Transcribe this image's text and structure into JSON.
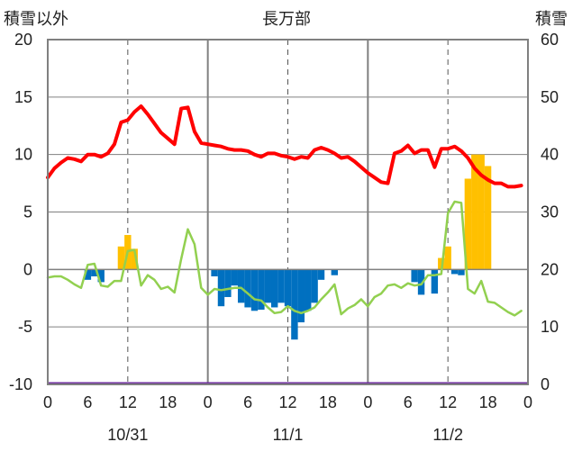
{
  "chart_data": {
    "type": "bar+line",
    "title": "長万部",
    "left_axis_title": "積雪以外",
    "right_axis_title": "積雪",
    "left_ylim": [
      -10,
      20
    ],
    "left_ticks": [
      "20",
      "15",
      "10",
      "5",
      "0",
      "-5",
      "-10"
    ],
    "right_ylim": [
      0,
      60
    ],
    "right_ticks": [
      "60",
      "50",
      "40",
      "30",
      "20",
      "10",
      "0"
    ],
    "x_hours_range": [
      0,
      72
    ],
    "x_tick_labels": [
      "0",
      "6",
      "12",
      "18",
      "0",
      "6",
      "12",
      "18",
      "0",
      "6",
      "12",
      "18",
      "0"
    ],
    "day_labels": [
      "10/31",
      "11/1",
      "11/2"
    ],
    "grid": "dashed vertical at hour 12 of each day; solid at day boundaries",
    "colors": {
      "temperature": "#ff0000",
      "dewpoint_or_wind": "#92d050",
      "precip_positive": "#ffc000",
      "precip_negative": "#0070c0",
      "snow_depth": "#7030a0",
      "frame": "#808080"
    },
    "series": [
      {
        "key": "red_line",
        "axis": "left",
        "values": [
          8.0,
          8.8,
          9.3,
          9.7,
          9.6,
          9.4,
          10.0,
          10.0,
          9.8,
          10.1,
          10.9,
          12.8,
          13.0,
          13.7,
          14.2,
          13.5,
          12.7,
          11.9,
          11.4,
          10.9,
          14.0,
          14.1,
          12.0,
          11.0,
          10.9,
          10.8,
          10.7,
          10.5,
          10.4,
          10.4,
          10.3,
          10.0,
          9.8,
          10.1,
          10.1,
          9.9,
          9.8,
          9.6,
          9.8,
          9.7,
          10.4,
          10.6,
          10.4,
          10.1,
          9.7,
          9.8,
          9.4,
          8.9,
          8.4,
          8.0,
          7.6,
          7.5,
          10.1,
          10.3,
          10.8,
          10.1,
          10.4,
          10.4,
          8.9,
          10.5,
          10.5,
          10.7,
          10.3,
          9.7,
          8.8,
          8.2,
          7.8,
          7.5,
          7.5,
          7.2,
          7.2,
          7.3
        ]
      },
      {
        "key": "green_line",
        "axis": "left",
        "values": [
          -0.7,
          -0.6,
          -0.6,
          -0.9,
          -1.3,
          -1.6,
          0.4,
          0.5,
          -1.4,
          -1.5,
          -1.0,
          -1.0,
          1.6,
          1.7,
          -1.4,
          -0.5,
          -0.9,
          -1.7,
          -1.5,
          -2.0,
          0.9,
          3.5,
          2.2,
          -1.6,
          -2.2,
          -1.7,
          -1.8,
          -1.7,
          -1.6,
          -1.6,
          -2.1,
          -2.6,
          -2.7,
          -3.3,
          -3.8,
          -3.7,
          -3.2,
          -3.6,
          -3.8,
          -3.6,
          -3.3,
          -2.6,
          -2.0,
          -1.3,
          -3.9,
          -3.4,
          -3.1,
          -2.6,
          -3.2,
          -2.4,
          -2.1,
          -1.4,
          -1.3,
          -1.6,
          -1.2,
          -1.4,
          -1.3,
          -0.5,
          -0.5,
          -0.4,
          4.9,
          5.9,
          5.8,
          -1.7,
          -2.1,
          -1.0,
          -2.8,
          -2.9,
          -3.3,
          -3.7,
          -4.0,
          -3.6
        ]
      },
      {
        "key": "snow_depth",
        "axis": "right",
        "values_constant": 0
      },
      {
        "key": "bars",
        "axis": "left",
        "bars": [
          {
            "hour": 6,
            "value": -0.9
          },
          {
            "hour": 7,
            "value": -0.6
          },
          {
            "hour": 8,
            "value": -1.1
          },
          {
            "hour": 11,
            "value": 2.0
          },
          {
            "hour": 12,
            "value": 3.0
          },
          {
            "hour": 13,
            "value": 1.8
          },
          {
            "hour": 25,
            "value": -0.6
          },
          {
            "hour": 26,
            "value": -3.2
          },
          {
            "hour": 27,
            "value": -2.4
          },
          {
            "hour": 28,
            "value": -1.4
          },
          {
            "hour": 29,
            "value": -2.9
          },
          {
            "hour": 30,
            "value": -3.3
          },
          {
            "hour": 31,
            "value": -3.6
          },
          {
            "hour": 32,
            "value": -3.5
          },
          {
            "hour": 33,
            "value": -2.9
          },
          {
            "hour": 34,
            "value": -3.3
          },
          {
            "hour": 35,
            "value": -2.9
          },
          {
            "hour": 36,
            "value": -3.2
          },
          {
            "hour": 37,
            "value": -6.1
          },
          {
            "hour": 38,
            "value": -4.6
          },
          {
            "hour": 39,
            "value": -3.6
          },
          {
            "hour": 40,
            "value": -2.9
          },
          {
            "hour": 41,
            "value": -0.9
          },
          {
            "hour": 43,
            "value": -0.5
          },
          {
            "hour": 55,
            "value": -1.1
          },
          {
            "hour": 56,
            "value": -2.2
          },
          {
            "hour": 58,
            "value": -2.1
          },
          {
            "hour": 59,
            "value": 1.0
          },
          {
            "hour": 60,
            "value": 2.0
          },
          {
            "hour": 61,
            "value": -0.4
          },
          {
            "hour": 62,
            "value": -0.5
          },
          {
            "hour": 63,
            "value": 7.9
          },
          {
            "hour": 64,
            "value": 10.0
          },
          {
            "hour": 65,
            "value": 10.0
          },
          {
            "hour": 66,
            "value": 9.0
          }
        ]
      }
    ]
  }
}
